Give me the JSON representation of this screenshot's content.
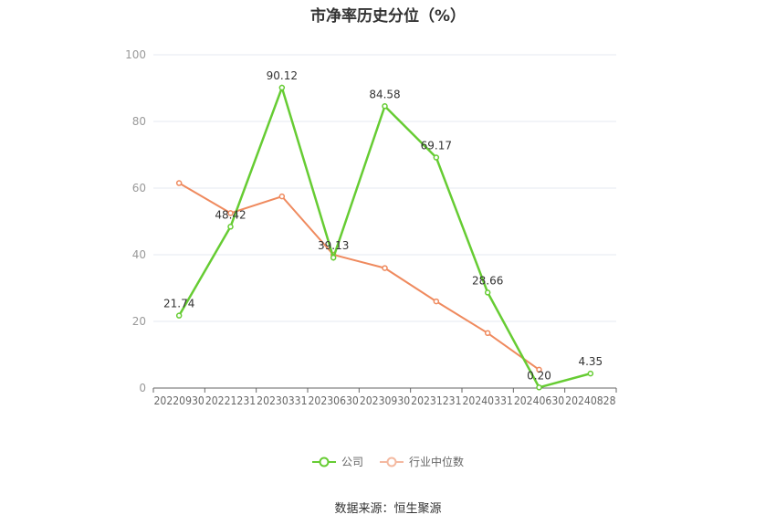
{
  "chart_data": {
    "type": "line",
    "title": "市净率历史分位（%）",
    "categories": [
      "20220930",
      "20221231",
      "20230331",
      "20230630",
      "20230930",
      "20231231",
      "20240331",
      "20240630",
      "20240828"
    ],
    "ylim": [
      0,
      100
    ],
    "yticks": [
      0,
      20,
      40,
      60,
      80,
      100
    ],
    "grid": true,
    "legend_position": "bottom",
    "series": [
      {
        "name": "公司",
        "color": "#66cc33",
        "values": [
          21.74,
          48.42,
          90.12,
          39.13,
          84.58,
          69.17,
          28.66,
          0.2,
          4.35
        ],
        "labels": [
          "21.74",
          "48.42",
          "90.12",
          "39.13",
          "84.58",
          "69.17",
          "28.66",
          "0.20",
          "4.35"
        ]
      },
      {
        "name": "行业中位数",
        "color": "#ef8a5e",
        "values": [
          61.5,
          52.5,
          57.5,
          40.0,
          36.0,
          26.0,
          16.5,
          5.5,
          null
        ]
      }
    ],
    "source": "数据来源：恒生聚源"
  }
}
